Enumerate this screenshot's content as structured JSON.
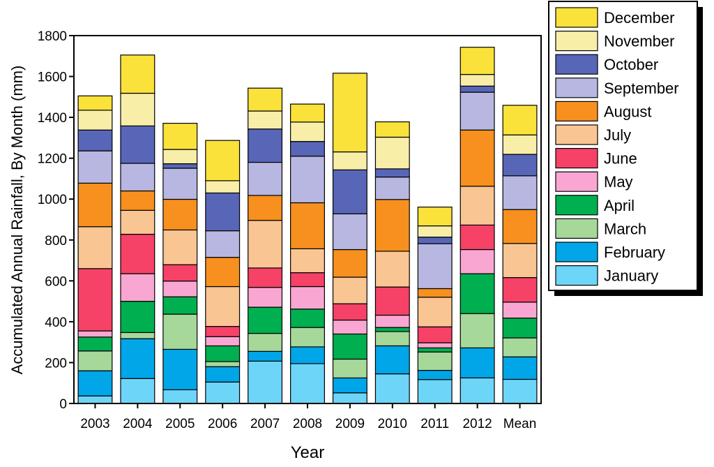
{
  "chart_data": {
    "type": "bar",
    "stacked": true,
    "xlabel": "Year",
    "ylabel": "Accumulated Annual Rainfall, By Month (mm)",
    "ylim": [
      0,
      1800
    ],
    "yticks": [
      0,
      200,
      400,
      600,
      800,
      1000,
      1200,
      1400,
      1600,
      1800
    ],
    "categories": [
      "2003",
      "2004",
      "2005",
      "2006",
      "2007",
      "2008",
      "2009",
      "2010",
      "2011",
      "2012",
      "Mean"
    ],
    "legend_position": "top-right-outside",
    "series": [
      {
        "name": "January",
        "color": "#6DD5F8",
        "values": [
          37,
          122,
          67,
          105,
          207,
          195,
          52,
          145,
          117,
          125,
          118
        ]
      },
      {
        "name": "February",
        "color": "#00A6E7",
        "values": [
          123,
          195,
          198,
          75,
          48,
          82,
          73,
          137,
          45,
          147,
          110
        ]
      },
      {
        "name": "March",
        "color": "#A6D89A",
        "values": [
          97,
          30,
          172,
          25,
          88,
          95,
          92,
          70,
          90,
          168,
          93
        ]
      },
      {
        "name": "April",
        "color": "#00AF50",
        "values": [
          68,
          153,
          85,
          77,
          128,
          90,
          123,
          20,
          20,
          195,
          97
        ]
      },
      {
        "name": "May",
        "color": "#F9A7D2",
        "values": [
          30,
          135,
          77,
          45,
          97,
          110,
          68,
          60,
          25,
          118,
          78
        ]
      },
      {
        "name": "June",
        "color": "#F54266",
        "values": [
          305,
          193,
          80,
          50,
          95,
          68,
          80,
          138,
          78,
          120,
          120
        ]
      },
      {
        "name": "July",
        "color": "#F9C593",
        "values": [
          205,
          117,
          170,
          195,
          233,
          117,
          130,
          175,
          145,
          190,
          167
        ]
      },
      {
        "name": "August",
        "color": "#F7901E",
        "values": [
          213,
          95,
          150,
          143,
          122,
          225,
          135,
          253,
          42,
          275,
          166
        ]
      },
      {
        "name": "September",
        "color": "#B7B7E2",
        "values": [
          158,
          135,
          152,
          130,
          162,
          228,
          175,
          110,
          220,
          185,
          165
        ]
      },
      {
        "name": "October",
        "color": "#5866B8",
        "values": [
          102,
          183,
          22,
          185,
          163,
          72,
          215,
          40,
          32,
          30,
          105
        ]
      },
      {
        "name": "November",
        "color": "#F8EEA8",
        "values": [
          97,
          160,
          70,
          60,
          88,
          95,
          88,
          155,
          55,
          57,
          95
        ]
      },
      {
        "name": "December",
        "color": "#FBE23A",
        "values": [
          70,
          187,
          128,
          197,
          112,
          88,
          385,
          75,
          92,
          133,
          145
        ]
      }
    ]
  }
}
